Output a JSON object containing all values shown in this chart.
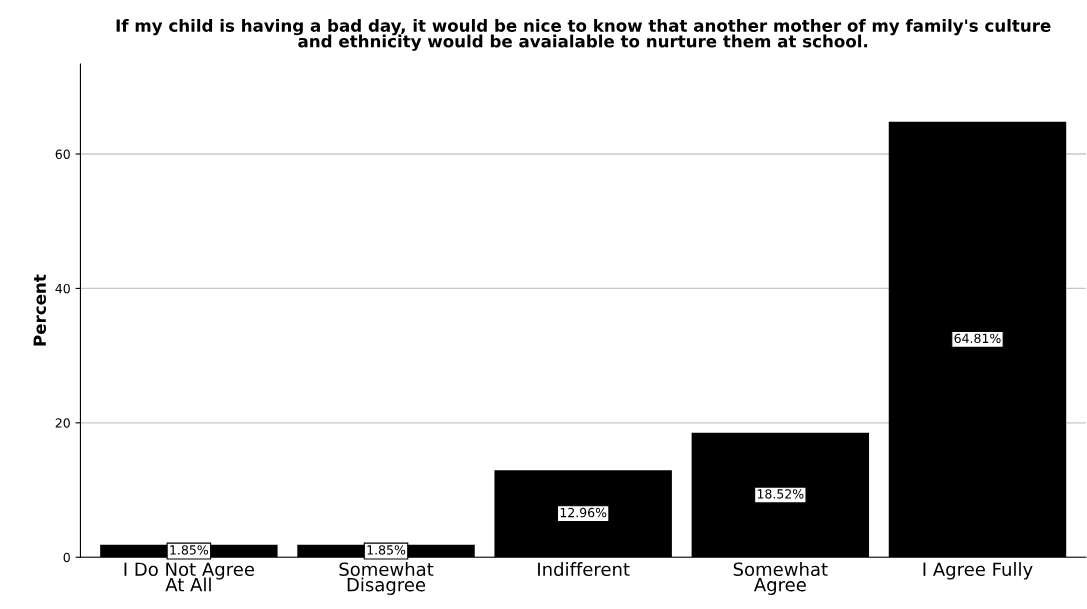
{
  "chart_data": {
    "type": "bar",
    "title": "If my child is having a bad day, it would be nice to know that another mother of my family's culture\nand ethnicity would be avaialable to nurture them at school.",
    "ylabel": "Percent",
    "categories": [
      "I Do Not Agree\nAt All",
      "Somewhat\nDisagree",
      "Indifferent",
      "Somewhat\nAgree",
      "I Agree Fully"
    ],
    "values": [
      1.85,
      1.85,
      12.96,
      18.52,
      64.81
    ],
    "value_labels": [
      "1.85%",
      "1.85%",
      "12.96%",
      "18.52%",
      "64.81%"
    ],
    "color": "#000000",
    "ylim": [
      0,
      73.4
    ],
    "yticks": [
      0,
      20,
      40,
      60
    ],
    "grid": "y",
    "legend": false
  }
}
